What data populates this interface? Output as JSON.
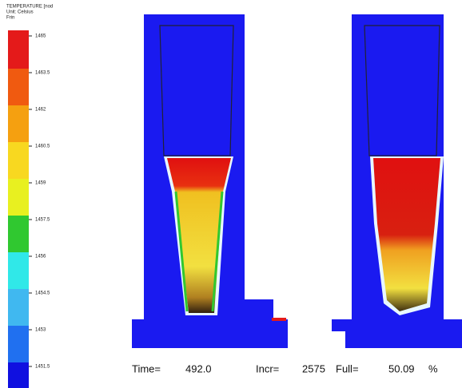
{
  "legend": {
    "title": "TEMPERATURE [nod",
    "unit": "Unit: Celsius",
    "frame": "Frin",
    "ticks": [
      "1465",
      "1463.5",
      "1462",
      "1460.5",
      "1459",
      "1457.5",
      "1456",
      "1454.5",
      "1453",
      "1451.5"
    ]
  },
  "status": {
    "time_label": "Time=",
    "time": "492.0",
    "incr_label": "Incr=",
    "incr": "2575",
    "fill_label": "Full=",
    "fill": "50.09",
    "fill_unit": "%"
  }
}
